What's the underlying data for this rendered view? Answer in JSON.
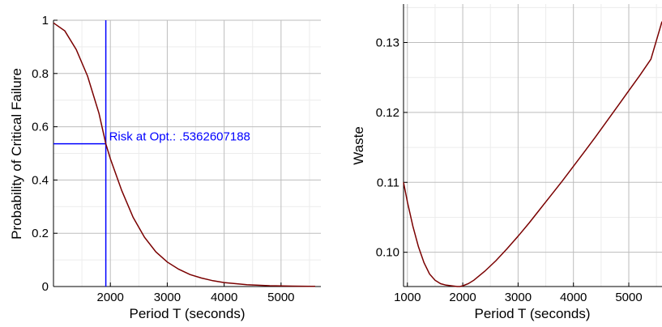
{
  "chart_data": [
    {
      "type": "line",
      "xlabel": "Period T (seconds)",
      "ylabel": "Probability of Critical Failure",
      "xlim": [
        1000,
        5700
      ],
      "ylim": [
        0,
        1
      ],
      "grid": true,
      "x_ticks": [
        2000,
        3000,
        4000,
        5000
      ],
      "x_tick_labels": [
        "2000",
        "3000",
        "4000",
        "5000"
      ],
      "y_ticks": [
        0,
        0.2,
        0.4,
        0.6,
        0.8,
        1
      ],
      "y_tick_labels": [
        "0",
        "0.2",
        "0.4",
        "0.6",
        "0.8",
        "1"
      ],
      "series": [
        {
          "color": "#7a0000",
          "x": [
            1000,
            1200,
            1400,
            1600,
            1800,
            1920,
            2000,
            2200,
            2400,
            2600,
            2800,
            3000,
            3200,
            3400,
            3600,
            3800,
            4000,
            4400,
            4800,
            5200,
            5600
          ],
          "y": [
            0.99,
            0.96,
            0.89,
            0.79,
            0.65,
            0.536,
            0.48,
            0.36,
            0.26,
            0.185,
            0.13,
            0.092,
            0.065,
            0.045,
            0.032,
            0.022,
            0.015,
            0.007,
            0.003,
            0.0015,
            0.0005
          ]
        }
      ],
      "reference_lines": {
        "color": "#0000ff",
        "vertical_x": 1920,
        "horizontal_y": 0.5362607188
      },
      "annotation": {
        "text": "Risk at Opt.: .5362607188",
        "x": 1920,
        "y": 0.5362607188
      }
    },
    {
      "type": "line",
      "xlabel": "Period T (seconds)",
      "ylabel": "Waste",
      "xlim": [
        930,
        5600
      ],
      "ylim": [
        0.0951,
        0.1355
      ],
      "grid": true,
      "x_ticks": [
        1000,
        2000,
        3000,
        4000,
        5000
      ],
      "x_tick_labels": [
        "1000",
        "2000",
        "3000",
        "4000",
        "5000"
      ],
      "y_ticks": [
        0.1,
        0.11,
        0.12,
        0.13
      ],
      "y_tick_labels": [
        "0.10",
        "0.11",
        "0.12",
        "0.13"
      ],
      "series": [
        {
          "color": "#7a0000",
          "x": [
            930,
            1000,
            1100,
            1200,
            1300,
            1400,
            1500,
            1600,
            1700,
            1800,
            1900,
            1950,
            2000,
            2100,
            2200,
            2400,
            2600,
            2800,
            3000,
            3200,
            3400,
            3600,
            3800,
            4000,
            4200,
            4400,
            4600,
            4800,
            5000,
            5200,
            5400,
            5600
          ],
          "y": [
            0.11,
            0.1072,
            0.1037,
            0.1008,
            0.0985,
            0.0969,
            0.096,
            0.0955,
            0.0953,
            0.0952,
            0.0951,
            0.0951,
            0.0952,
            0.0955,
            0.096,
            0.0973,
            0.0988,
            0.1005,
            0.1023,
            0.1042,
            0.1062,
            0.1082,
            0.1102,
            0.1123,
            0.1144,
            0.1165,
            0.1187,
            0.1209,
            0.1231,
            0.1253,
            0.1276,
            0.133
          ]
        }
      ]
    }
  ]
}
